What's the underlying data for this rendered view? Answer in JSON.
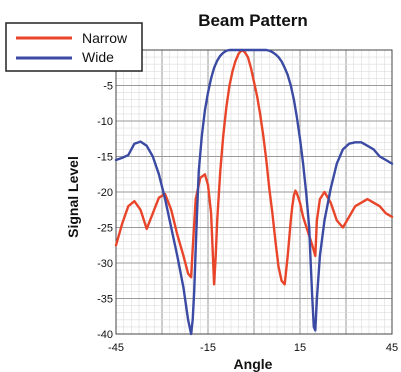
{
  "chart_data": {
    "type": "line",
    "title": "Beam Pattern",
    "xlabel": "Angle",
    "ylabel": "Signal Level",
    "xlim": [
      -45,
      45
    ],
    "ylim": [
      -40,
      0
    ],
    "x_ticks": [
      -45,
      -15,
      15,
      45
    ],
    "y_ticks": [
      -5,
      -10,
      -15,
      -20,
      -25,
      -30,
      -35,
      -40
    ],
    "grid": true,
    "legend": {
      "position": "top-left"
    },
    "series": [
      {
        "name": "Narrow",
        "color": "#e8452a",
        "x": [
          -45,
          -43,
          -41,
          -39,
          -37,
          -35,
          -33,
          -31,
          -29,
          -27,
          -25,
          -23,
          -21.5,
          -20.5,
          -20,
          -19,
          -17.5,
          -16,
          -15,
          -14,
          -13.5,
          -13,
          -12.5,
          -12,
          -11,
          -10,
          -9,
          -8,
          -7,
          -6,
          -5,
          -4,
          -3,
          -2,
          -1,
          0,
          1,
          2,
          3,
          4,
          5,
          6,
          7,
          8,
          9,
          10,
          11,
          12,
          12.5,
          13,
          13.5,
          14,
          15,
          16,
          17.5,
          19,
          20,
          20.5,
          21.5,
          23,
          25,
          27,
          29,
          31,
          33,
          35,
          37,
          39,
          41,
          43,
          45
        ],
        "y": [
          -27.5,
          -24.5,
          -22,
          -21.3,
          -22.5,
          -25.2,
          -23,
          -20.8,
          -20.3,
          -22.5,
          -26,
          -29,
          -31.5,
          -32,
          -28,
          -21,
          -18,
          -17.5,
          -19,
          -23,
          -28,
          -33,
          -29,
          -24,
          -17,
          -12,
          -8,
          -5,
          -3,
          -1.5,
          -0.5,
          0,
          -0.3,
          -1,
          -2.5,
          -4.5,
          -6.5,
          -9,
          -12,
          -15.5,
          -19.5,
          -23,
          -27,
          -30.5,
          -32.5,
          -33,
          -29,
          -24,
          -22,
          -20.5,
          -19.8,
          -20.2,
          -21.5,
          -23.5,
          -25.5,
          -27.5,
          -29,
          -24,
          -21,
          -20,
          -21.5,
          -24,
          -25,
          -23.5,
          -22,
          -21.5,
          -21,
          -21.5,
          -22,
          -23,
          -23.5
        ]
      },
      {
        "name": "Wide",
        "color": "#3b4aa3",
        "x": [
          -45,
          -43,
          -41,
          -39,
          -37,
          -35,
          -33,
          -31,
          -29,
          -27,
          -25,
          -23,
          -21.5,
          -20.5,
          -20,
          -19.5,
          -19,
          -18.5,
          -18,
          -17,
          -16,
          -15,
          -14,
          -13,
          -12,
          -11,
          -10,
          -9,
          -8,
          -7,
          -6,
          -5,
          -4,
          -3,
          -2,
          -1,
          0,
          1,
          2,
          3,
          4,
          5,
          6,
          7,
          8,
          9,
          10,
          11,
          12,
          13,
          14,
          15,
          16,
          17,
          18,
          18.5,
          19,
          19.5,
          20,
          20.5,
          21.5,
          23,
          25,
          27,
          29,
          31,
          33,
          35,
          37,
          39,
          41,
          43,
          45
        ],
        "y": [
          -15.5,
          -15.2,
          -14.8,
          -13.2,
          -12.9,
          -13.5,
          -15,
          -17.5,
          -21,
          -25,
          -29,
          -33.5,
          -38,
          -40,
          -38,
          -34,
          -28,
          -22,
          -17,
          -12,
          -8.5,
          -6,
          -4,
          -2.5,
          -1.5,
          -0.8,
          -0.4,
          -0.1,
          0,
          0,
          0,
          0,
          0,
          0,
          0,
          0,
          0,
          0,
          0,
          0,
          0,
          -0.1,
          -0.3,
          -0.6,
          -1,
          -1.6,
          -2.5,
          -3.5,
          -5,
          -7,
          -9.5,
          -12.5,
          -16,
          -20,
          -25,
          -30,
          -35,
          -39,
          -39.5,
          -35,
          -29,
          -24,
          -19.5,
          -16,
          -14,
          -13.2,
          -13,
          -13,
          -13.5,
          -14,
          -15,
          -15.5,
          -16
        ]
      }
    ]
  }
}
